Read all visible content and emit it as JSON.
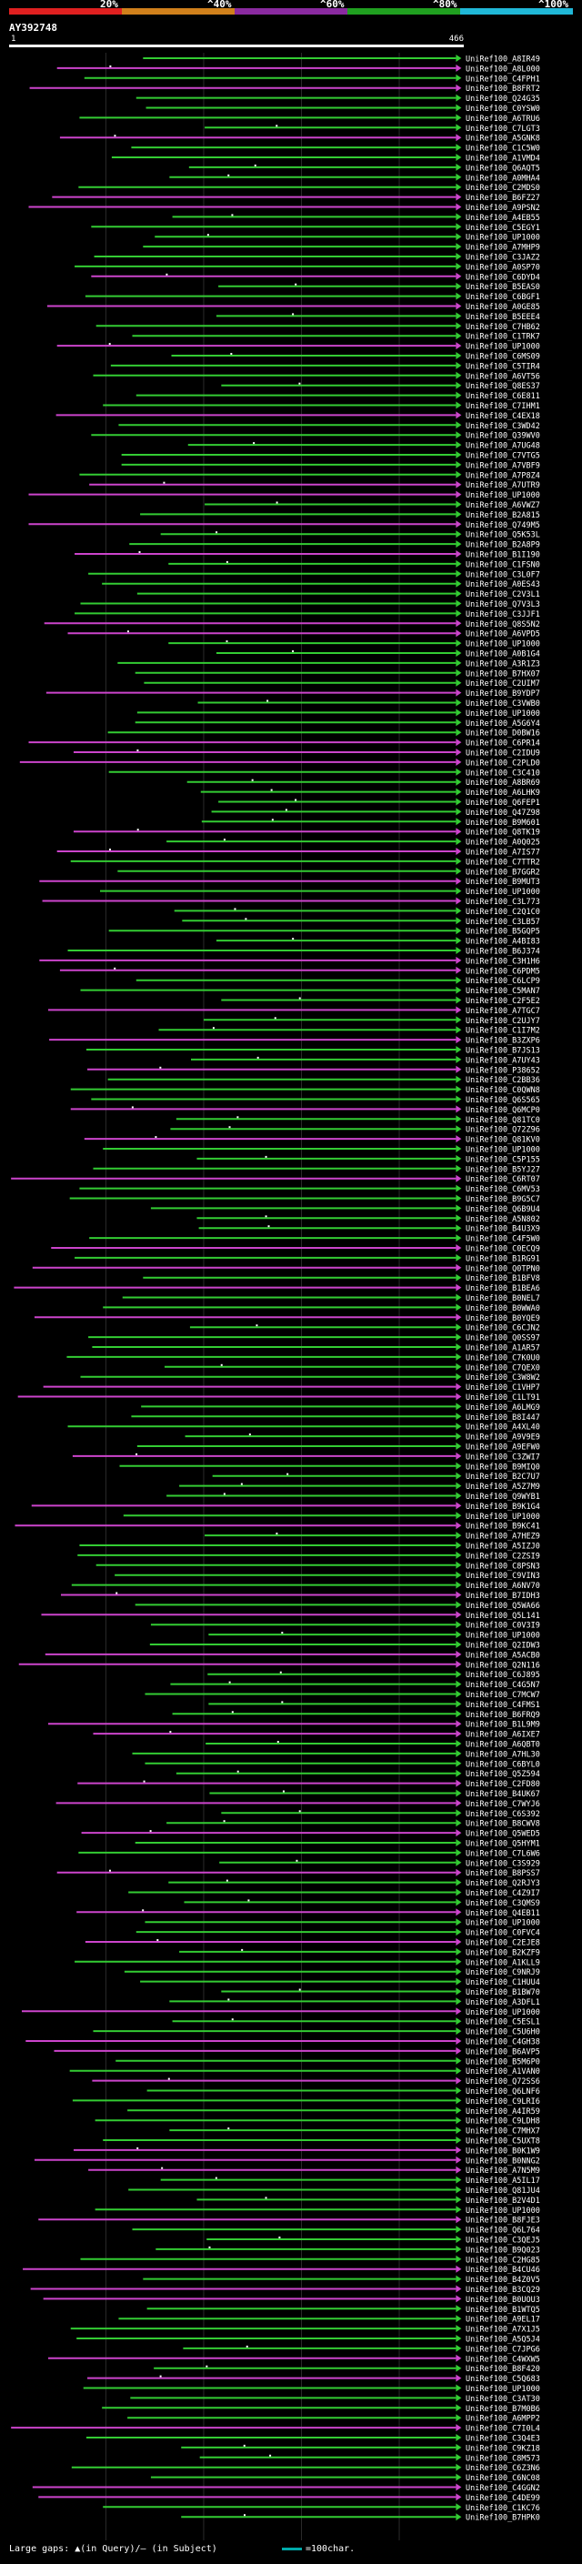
{
  "identity_bar": {
    "labels": [
      "20%",
      "^40%",
      "^60%",
      "^80%",
      "^100%"
    ],
    "colors": [
      "#e02020",
      "#d0801b",
      "#8a2aa0",
      "#20a020",
      "#20b8d8"
    ]
  },
  "query": {
    "title": "AY392748",
    "ruler_start": "1",
    "ruler_end": "466"
  },
  "legend": {
    "large_gaps": "Large gaps: ▲(in Query)/— (in Subject)",
    "scale": "=100char."
  },
  "chart_data": {
    "type": "alignment-overview",
    "title": "AY392748",
    "query_length": 466,
    "x_range": [
      1,
      466
    ],
    "subjects": [
      "UniRef100_A8IR49",
      "UniRef100_A8L000",
      "UniRef100_C4FPH1",
      "UniRef100_B8FRT2",
      "UniRef100_Q24G35",
      "UniRef100_C0YSW0",
      "UniRef100_A6TRU6",
      "UniRef100_C7LGT3",
      "UniRef100_A5GNK8",
      "UniRef100_C1C5W0",
      "UniRef100_A1VMD4",
      "UniRef100_Q6AQT5",
      "UniRef100_A0MHA4",
      "UniRef100_C2MDS0",
      "UniRef100_B6FZ27",
      "UniRef100_A9PSN2",
      "UniRef100_A4EB55",
      "UniRef100_C5EGY1",
      "UniRef100_UP1000",
      "UniRef100_A7MHP9",
      "UniRef100_C3JAZ2",
      "UniRef100_A0SP70",
      "UniRef100_C6DYD4",
      "UniRef100_B5EAS0",
      "UniRef100_C6BGF1",
      "UniRef100_A0GE85",
      "UniRef100_B5EEE4",
      "UniRef100_C7HB62",
      "UniRef100_C1TRK7",
      "UniRef100_UP1000",
      "UniRef100_C6MS09",
      "UniRef100_C5TIR4",
      "UniRef100_A6VT56",
      "UniRef100_Q8ES37",
      "UniRef100_C6E811",
      "UniRef100_C7IHM1",
      "UniRef100_C4EX18",
      "UniRef100_C3WD42",
      "UniRef100_Q39WV0",
      "UniRef100_A7UG48",
      "UniRef100_C7VTG5",
      "UniRef100_A7VBF9",
      "UniRef100_A7P8Z4",
      "UniRef100_A7UTR9",
      "UniRef100_UP1000",
      "UniRef100_A6VWZ7",
      "UniRef100_B2A815",
      "UniRef100_Q749M5",
      "UniRef100_Q5K53L",
      "UniRef100_B2A8P9",
      "UniRef100_B1I190",
      "UniRef100_C1FSN0",
      "UniRef100_C3L0F7",
      "UniRef100_A0ES43",
      "UniRef100_C2V3L1",
      "UniRef100_Q7V3L3",
      "UniRef100_C3JJF1",
      "UniRef100_Q8S5N2",
      "UniRef100_A6VPD5",
      "UniRef100_UP1000",
      "UniRef100_A0B1G4",
      "UniRef100_A3R1Z3",
      "UniRef100_B7HX07",
      "UniRef100_C2UIM7",
      "UniRef100_B9YDP7",
      "UniRef100_C3VWB0",
      "UniRef100_UP1000",
      "UniRef100_A5G6Y4",
      "UniRef100_D0BW16",
      "UniRef100_C6PR14",
      "UniRef100_C2IDU9",
      "UniRef100_C2PLD0",
      "UniRef100_C3C410",
      "UniRef100_A8BR69",
      "UniRef100_A6LHK9",
      "UniRef100_Q6FEP1",
      "UniRef100_Q47Z98",
      "UniRef100_B9M601",
      "UniRef100_Q8TK19",
      "UniRef100_A0Q025",
      "UniRef100_A7IS77",
      "UniRef100_C7TTR2",
      "UniRef100_B7GGR2",
      "UniRef100_B9MUT3",
      "UniRef100_UP1000",
      "UniRef100_C3L773",
      "UniRef100_C2Q1C0",
      "UniRef100_C3LB57",
      "UniRef100_B5GQP5",
      "UniRef100_A4BI83",
      "UniRef100_B6J374",
      "UniRef100_C3H1H6",
      "UniRef100_C6PDM5",
      "UniRef100_C6LCP9",
      "UniRef100_C5MAN7",
      "UniRef100_C2F5E2",
      "UniRef100_A7TGC7",
      "UniRef100_C2UJY7",
      "UniRef100_C1I7M2",
      "UniRef100_B3ZXP6",
      "UniRef100_B7JS13",
      "UniRef100_A7UY43",
      "UniRef100_P38652",
      "UniRef100_C2BB36",
      "UniRef100_C0QWN8",
      "UniRef100_Q6S565",
      "UniRef100_Q6MCP0",
      "UniRef100_Q81TC0",
      "UniRef100_Q72Z96",
      "UniRef100_Q81KV0",
      "UniRef100_UP1000",
      "UniRef100_C5P155",
      "UniRef100_B5YJ27",
      "UniRef100_C6RT07",
      "UniRef100_C6MV53",
      "UniRef100_B9G5C7",
      "UniRef100_Q6B9U4",
      "UniRef100_A5N802",
      "UniRef100_B4U3X9",
      "UniRef100_C4F5W0",
      "UniRef100_C0ECQ9",
      "UniRef100_B1RG91",
      "UniRef100_Q0TPN0",
      "UniRef100_B1BFV8",
      "UniRef100_B1BEA6",
      "UniRef100_B0NEL7",
      "UniRef100_B0WWA0",
      "UniRef100_B0YQE9",
      "UniRef100_C6CJN2",
      "UniRef100_Q0SS97",
      "UniRef100_A1AR57",
      "UniRef100_C7K0U0",
      "UniRef100_C7QEX0",
      "UniRef100_C3W8W2",
      "UniRef100_C1VHP7",
      "UniRef100_C1LT91",
      "UniRef100_A6LMG9",
      "UniRef100_B8I447",
      "UniRef100_A4XL40",
      "UniRef100_A9V9E9",
      "UniRef100_A9EFW0",
      "UniRef100_C3ZWI7",
      "UniRef100_B9MIQ0",
      "UniRef100_B2C7U7",
      "UniRef100_A5Z7M9",
      "UniRef100_Q9WYB1",
      "UniRef100_B9K1G4",
      "UniRef100_UP1000",
      "UniRef100_B9KC41",
      "UniRef100_A7HEZ9",
      "UniRef100_A5IZJ0",
      "UniRef100_C2ZSI9",
      "UniRef100_C8PSN3",
      "UniRef100_C9VIN3",
      "UniRef100_A6NV70",
      "UniRef100_B7IDH3",
      "UniRef100_Q5WA66",
      "UniRef100_Q5L141",
      "UniRef100_C0V3I9",
      "UniRef100_UP1000",
      "UniRef100_Q2IDW3",
      "UniRef100_A5ACB0",
      "UniRef100_Q2N116",
      "UniRef100_C6J895",
      "UniRef100_C4G5N7",
      "UniRef100_C7MCW7",
      "UniRef100_C4FMS1",
      "UniRef100_B6FRQ9",
      "UniRef100_B1L9M9",
      "UniRef100_A6IXE7",
      "UniRef100_A6QBT0",
      "UniRef100_A7HL30",
      "UniRef100_C6BYL0",
      "UniRef100_Q5Z594",
      "UniRef100_C2FD80",
      "UniRef100_B4UK67",
      "UniRef100_C7WYJ6",
      "UniRef100_C6S392",
      "UniRef100_B8CWV8",
      "UniRef100_Q5WED5",
      "UniRef100_Q5HYM1",
      "UniRef100_C7L6W6",
      "UniRef100_C3S929",
      "UniRef100_B8PSS7",
      "UniRef100_Q2RJY3",
      "UniRef100_C4Z9I7",
      "UniRef100_C3QMS9",
      "UniRef100_Q4EB11",
      "UniRef100_UP1000",
      "UniRef100_C0FVC4",
      "UniRef100_C2EJE8",
      "UniRef100_B2KZF9",
      "UniRef100_A1KLL9",
      "UniRef100_C9NRJ9",
      "UniRef100_C1HUU4",
      "UniRef100_B1BW70",
      "UniRef100_A3DFL1",
      "UniRef100_UP1000",
      "UniRef100_C5ESL1",
      "UniRef100_C5U6H0",
      "UniRef100_C4GH38",
      "UniRef100_B6AVP5",
      "UniRef100_B5M6P0",
      "UniRef100_A1VAN0",
      "UniRef100_Q72SS6",
      "UniRef100_Q6LNF6",
      "UniRef100_C9LRI6",
      "UniRef100_A4IR59",
      "UniRef100_C9LDH8",
      "UniRef100_C7MHX7",
      "UniRef100_C5UXT8",
      "UniRef100_B0K1W9",
      "UniRef100_B0NNG2",
      "UniRef100_A7N5M9",
      "UniRef100_A5IL17",
      "UniRef100_Q81JU4",
      "UniRef100_B2V4D1",
      "UniRef100_UP1000",
      "UniRef100_B8FJE3",
      "UniRef100_Q6L764",
      "UniRef100_C3QEJ5",
      "UniRef100_B9Q023",
      "UniRef100_C2HG85",
      "UniRef100_B4CU46",
      "UniRef100_B4Z0V5",
      "UniRef100_B3CQ29",
      "UniRef100_B0UOU3",
      "UniRef100_B1WTQ5",
      "UniRef100_A9EL17",
      "UniRef100_A7X1J5",
      "UniRef100_A5Q5J4",
      "UniRef100_C7JPG6",
      "UniRef100_C4WXW5",
      "UniRef100_B8F420",
      "UniRef100_C5Q683",
      "UniRef100_UP1000",
      "UniRef100_C3AT30",
      "UniRef100_B7M0B6",
      "UniRef100_A6MPP2",
      "UniRef100_C7I0L4",
      "UniRef100_C3Q4E3",
      "UniRef100_C9KZ18",
      "UniRef100_C8M573",
      "UniRef100_C6Z3N6",
      "UniRef100_C6NC08",
      "UniRef100_C4GGN2",
      "UniRef100_C4DE99",
      "UniRef100_C1KC76",
      "UniRef100_B7HPK0"
    ],
    "color_key": {
      "magenta": "below 80% identity",
      "green": "80-100% identity"
    },
    "scale_bar": "100 characters"
  }
}
